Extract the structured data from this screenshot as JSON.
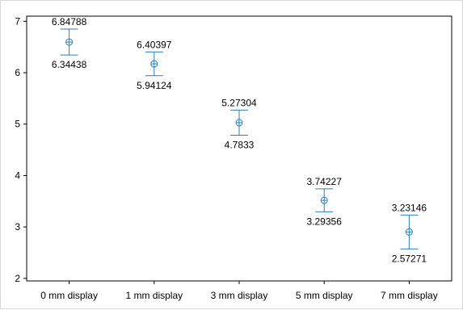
{
  "chart_data": {
    "type": "errorbar",
    "title": "",
    "xlabel": "",
    "ylabel": "",
    "categories": [
      "0 mm display",
      "1 mm display",
      "3 mm display",
      "5 mm display",
      "7 mm display"
    ],
    "means": [
      6.59613,
      6.172605,
      5.02817,
      3.517915,
      2.902085
    ],
    "upper": [
      "6.84788",
      "6.40397",
      "5.27304",
      "3.74227",
      "3.23146"
    ],
    "lower": [
      "6.34438",
      "5.94124",
      "4.7833",
      "3.29356",
      "2.57271"
    ],
    "ylim": [
      1.95,
      7.1
    ],
    "yticks": [
      2,
      3,
      4,
      5,
      6,
      7
    ],
    "grid": false,
    "legend": "none",
    "colors": {
      "series": "#2a7fb8",
      "axis": "#000000"
    }
  }
}
